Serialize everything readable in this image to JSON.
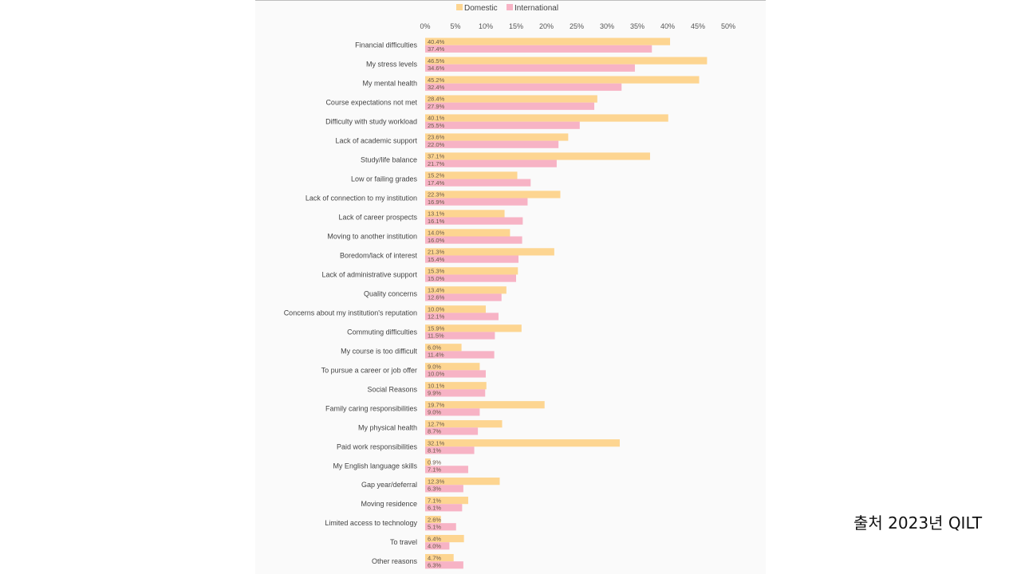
{
  "source_note": "출처 2023년 QILT",
  "chart_data": {
    "type": "bar",
    "orientation": "horizontal",
    "categories": [
      "Financial difficulties",
      "My stress levels",
      "My mental health",
      "Course expectations not met",
      "Difficulty with study workload",
      "Lack of academic support",
      "Study/life balance",
      "Low or failing grades",
      "Lack of connection to my institution",
      "Lack of career prospects",
      "Moving to another institution",
      "Boredom/lack of interest",
      "Lack of administrative support",
      "Quality concerns",
      "Concerns about my institution's reputation",
      "Commuting difficulties",
      "My course is too difficult",
      "To pursue a career or job offer",
      "Social Reasons",
      "Family caring responsibilities",
      "My physical health",
      "Paid work responsibilities",
      "My English language skills",
      "Gap year/deferral",
      "Moving residence",
      "Limited access to technology",
      "To travel",
      "Other reasons"
    ],
    "series": [
      {
        "name": "Domestic",
        "color": "#fdd591",
        "values": [
          40.4,
          46.5,
          45.2,
          28.4,
          40.1,
          23.6,
          37.1,
          15.2,
          22.3,
          13.1,
          14.0,
          21.3,
          15.3,
          13.4,
          10.0,
          15.9,
          6.0,
          9.0,
          10.1,
          19.7,
          12.7,
          32.1,
          0.9,
          12.3,
          7.1,
          2.6,
          6.4,
          4.7
        ],
        "labels": [
          "40.4%",
          "46.5%",
          "45.2%",
          "28.4%",
          "40.1%",
          "23.6%",
          "37.1%",
          "15.2%",
          "22.3%",
          "13.1%",
          "14.0%",
          "21.3%",
          "15.3%",
          "13.4%",
          "10.0%",
          "15.9%",
          "6.0%",
          "9.0%",
          "10.1%",
          "19.7%",
          "12.7%",
          "32.1%",
          "0.9%",
          "12.3%",
          "7.1%",
          "2.6%",
          "6.4%",
          "4.7%"
        ]
      },
      {
        "name": "International",
        "color": "#f7b3c5",
        "values": [
          37.4,
          34.6,
          32.4,
          27.9,
          25.5,
          22.0,
          21.7,
          17.4,
          16.9,
          16.1,
          16.0,
          15.4,
          15.0,
          12.6,
          12.1,
          11.5,
          11.4,
          10.0,
          9.9,
          9.0,
          8.7,
          8.1,
          7.1,
          6.3,
          6.1,
          5.1,
          4.0,
          6.3
        ],
        "labels": [
          "37.4%",
          "34.6%",
          "32.4%",
          "27.9%",
          "25.5%",
          "22.0%",
          "21.7%",
          "17.4%",
          "16.9%",
          "16.1%",
          "16.0%",
          "15.4%",
          "15.0%",
          "12.6%",
          "12.1%",
          "11.5%",
          "11.4%",
          "10.0%",
          "9.9%",
          "9.0%",
          "8.7%",
          "8.1%",
          "7.1%",
          "6.3%",
          "6.1%",
          "5.1%",
          "4.0%",
          "6.3%"
        ]
      }
    ],
    "x_ticks": [
      "0%",
      "5%",
      "10%",
      "15%",
      "20%",
      "25%",
      "30%",
      "35%",
      "40%",
      "45%",
      "50%"
    ],
    "xlim": [
      0,
      50
    ],
    "legend_position": "top",
    "grid": false
  }
}
